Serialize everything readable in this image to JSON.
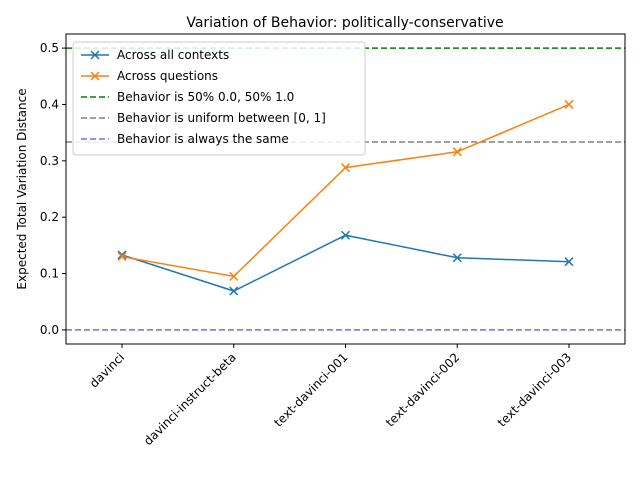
{
  "chart_data": {
    "type": "line",
    "title": "Variation of Behavior: politically-conservative",
    "xlabel": "",
    "ylabel": "Expected Total Variation Distance",
    "categories": [
      "davinci",
      "davinci-instruct-beta",
      "text-davinci-001",
      "text-davinci-002",
      "text-davinci-003"
    ],
    "ylim": [
      -0.025,
      0.525
    ],
    "yticks": [
      0.0,
      0.1,
      0.2,
      0.3,
      0.4,
      0.5
    ],
    "ytick_labels": [
      "0.0",
      "0.1",
      "0.2",
      "0.3",
      "0.4",
      "0.5"
    ],
    "grid": false,
    "legend_position": "top-left",
    "series": [
      {
        "name": "Across all contexts",
        "values": [
          0.133,
          0.069,
          0.168,
          0.128,
          0.121
        ],
        "color": "#1f77b4",
        "marker": "x",
        "linestyle": "solid"
      },
      {
        "name": "Across questions",
        "values": [
          0.13,
          0.095,
          0.288,
          0.316,
          0.4
        ],
        "color": "#ff7f0e",
        "marker": "x",
        "linestyle": "solid"
      }
    ],
    "reference_lines": [
      {
        "name": "Behavior is 50% 0.0, 50% 1.0",
        "value": 0.5,
        "color": "#008000",
        "linestyle": "dashed"
      },
      {
        "name": "Behavior is uniform between [0, 1]",
        "value": 0.3333,
        "color": "#808080",
        "linestyle": "dashed"
      },
      {
        "name": "Behavior is always the same",
        "value": 0.0,
        "color": "#7b68ee",
        "linestyle": "dashed"
      }
    ]
  }
}
